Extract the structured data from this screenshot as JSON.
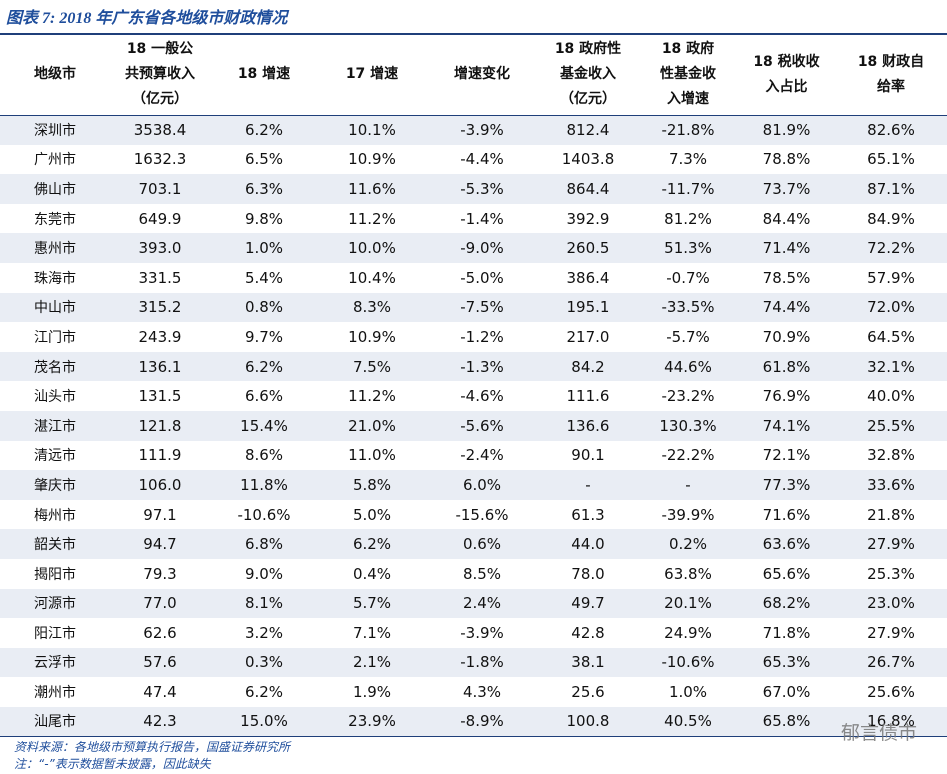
{
  "title": "图表 7: 2018 年广东省各地级市财政情况",
  "table": {
    "header": [
      [
        "地级市"
      ],
      [
        "18 一般公",
        "共预算收入",
        "（亿元）"
      ],
      [
        "18 增速"
      ],
      [
        "17 增速"
      ],
      [
        "增速变化"
      ],
      [
        "18 政府性",
        "基金收入",
        "（亿元）"
      ],
      [
        "18 政府",
        "性基金收",
        "入增速"
      ],
      [
        "18 税收收",
        "入占比"
      ],
      [
        "18 财政自",
        "给率"
      ]
    ],
    "rows": [
      [
        "深圳市",
        "3538.4",
        "6.2%",
        "10.1%",
        "-3.9%",
        "812.4",
        "-21.8%",
        "81.9%",
        "82.6%"
      ],
      [
        "广州市",
        "1632.3",
        "6.5%",
        "10.9%",
        "-4.4%",
        "1403.8",
        "7.3%",
        "78.8%",
        "65.1%"
      ],
      [
        "佛山市",
        "703.1",
        "6.3%",
        "11.6%",
        "-5.3%",
        "864.4",
        "-11.7%",
        "73.7%",
        "87.1%"
      ],
      [
        "东莞市",
        "649.9",
        "9.8%",
        "11.2%",
        "-1.4%",
        "392.9",
        "81.2%",
        "84.4%",
        "84.9%"
      ],
      [
        "惠州市",
        "393.0",
        "1.0%",
        "10.0%",
        "-9.0%",
        "260.5",
        "51.3%",
        "71.4%",
        "72.2%"
      ],
      [
        "珠海市",
        "331.5",
        "5.4%",
        "10.4%",
        "-5.0%",
        "386.4",
        "-0.7%",
        "78.5%",
        "57.9%"
      ],
      [
        "中山市",
        "315.2",
        "0.8%",
        "8.3%",
        "-7.5%",
        "195.1",
        "-33.5%",
        "74.4%",
        "72.0%"
      ],
      [
        "江门市",
        "243.9",
        "9.7%",
        "10.9%",
        "-1.2%",
        "217.0",
        "-5.7%",
        "70.9%",
        "64.5%"
      ],
      [
        "茂名市",
        "136.1",
        "6.2%",
        "7.5%",
        "-1.3%",
        "84.2",
        "44.6%",
        "61.8%",
        "32.1%"
      ],
      [
        "汕头市",
        "131.5",
        "6.6%",
        "11.2%",
        "-4.6%",
        "111.6",
        "-23.2%",
        "76.9%",
        "40.0%"
      ],
      [
        "湛江市",
        "121.8",
        "15.4%",
        "21.0%",
        "-5.6%",
        "136.6",
        "130.3%",
        "74.1%",
        "25.5%"
      ],
      [
        "清远市",
        "111.9",
        "8.6%",
        "11.0%",
        "-2.4%",
        "90.1",
        "-22.2%",
        "72.1%",
        "32.8%"
      ],
      [
        "肇庆市",
        "106.0",
        "11.8%",
        "5.8%",
        "6.0%",
        "-",
        "-",
        "77.3%",
        "33.6%"
      ],
      [
        "梅州市",
        "97.1",
        "-10.6%",
        "5.0%",
        "-15.6%",
        "61.3",
        "-39.9%",
        "71.6%",
        "21.8%"
      ],
      [
        "韶关市",
        "94.7",
        "6.8%",
        "6.2%",
        "0.6%",
        "44.0",
        "0.2%",
        "63.6%",
        "27.9%"
      ],
      [
        "揭阳市",
        "79.3",
        "9.0%",
        "0.4%",
        "8.5%",
        "78.0",
        "63.8%",
        "65.6%",
        "25.3%"
      ],
      [
        "河源市",
        "77.0",
        "8.1%",
        "5.7%",
        "2.4%",
        "49.7",
        "20.1%",
        "68.2%",
        "23.0%"
      ],
      [
        "阳江市",
        "62.6",
        "3.2%",
        "7.1%",
        "-3.9%",
        "42.8",
        "24.9%",
        "71.8%",
        "27.9%"
      ],
      [
        "云浮市",
        "57.6",
        "0.3%",
        "2.1%",
        "-1.8%",
        "38.1",
        "-10.6%",
        "65.3%",
        "26.7%"
      ],
      [
        "潮州市",
        "47.4",
        "6.2%",
        "1.9%",
        "4.3%",
        "25.6",
        "1.0%",
        "67.0%",
        "25.6%"
      ],
      [
        "汕尾市",
        "42.3",
        "15.0%",
        "23.9%",
        "-8.9%",
        "100.8",
        "40.5%",
        "65.8%",
        "16.8%"
      ]
    ]
  },
  "footer": {
    "source": "资料来源：各地级市预算执行报告，国盛证券研究所",
    "note": "注：“-”表示数据暂未披露，因此缺失"
  },
  "watermark": "郁言债市"
}
